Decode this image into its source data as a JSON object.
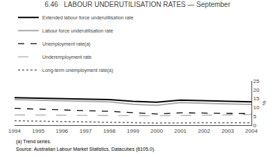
{
  "chart_data": {
    "type": "line",
    "title": "6.46   LABOUR UNDERUTILISATION RATES — September",
    "x": [
      1994,
      1995,
      1996,
      1997,
      1998,
      1999,
      2000,
      2001,
      2002,
      2003,
      2004
    ],
    "series": [
      {
        "name": "Extended labour force underutilisation rate",
        "color": "#000000",
        "line_style": "solid",
        "values": [
          15.5,
          15.2,
          15.0,
          14.8,
          14.5,
          13.5,
          13.0,
          14.2,
          13.8,
          13.5,
          13.2
        ]
      },
      {
        "name": "Labour force underutilisation rate",
        "color": "#aaaaaa",
        "line_style": "solid",
        "values": [
          14.5,
          14.1,
          13.9,
          13.5,
          13.2,
          11.8,
          11.2,
          12.8,
          12.3,
          12.0,
          11.7
        ]
      },
      {
        "name": "Unemployment rate(a)",
        "color": "#000000",
        "line_style": "dash",
        "values": [
          9.5,
          9.0,
          8.5,
          8.2,
          7.8,
          7.0,
          6.3,
          7.0,
          6.8,
          6.5,
          6.5
        ]
      },
      {
        "name": "Underemployment rate",
        "color": "#aaaaaa",
        "line_style": "longdash",
        "values": [
          5.8,
          5.7,
          5.7,
          5.6,
          5.5,
          5.3,
          5.3,
          5.5,
          5.7,
          5.8,
          6.0
        ]
      },
      {
        "name": "Long-term unemployment rate(a)",
        "color": "#666666",
        "line_style": "dot",
        "values": [
          2.5,
          2.3,
          2.0,
          1.8,
          1.5,
          1.3,
          1.2,
          1.3,
          1.4,
          1.4,
          1.4
        ]
      }
    ],
    "xlim": [
      1994,
      2004
    ],
    "xticks": [
      1994,
      1995,
      1996,
      1997,
      1998,
      1999,
      2000,
      2001,
      2002,
      2003,
      2004
    ],
    "ylim": [
      0,
      25
    ],
    "yticks": [
      0,
      5,
      10,
      15,
      20,
      25
    ],
    "ylabel": "%",
    "annotations": [
      "(a) Trend series.",
      "Source: Australian Labour Market Statistics, Datacubes (6105.0)."
    ],
    "grid": false,
    "legend": "top"
  }
}
